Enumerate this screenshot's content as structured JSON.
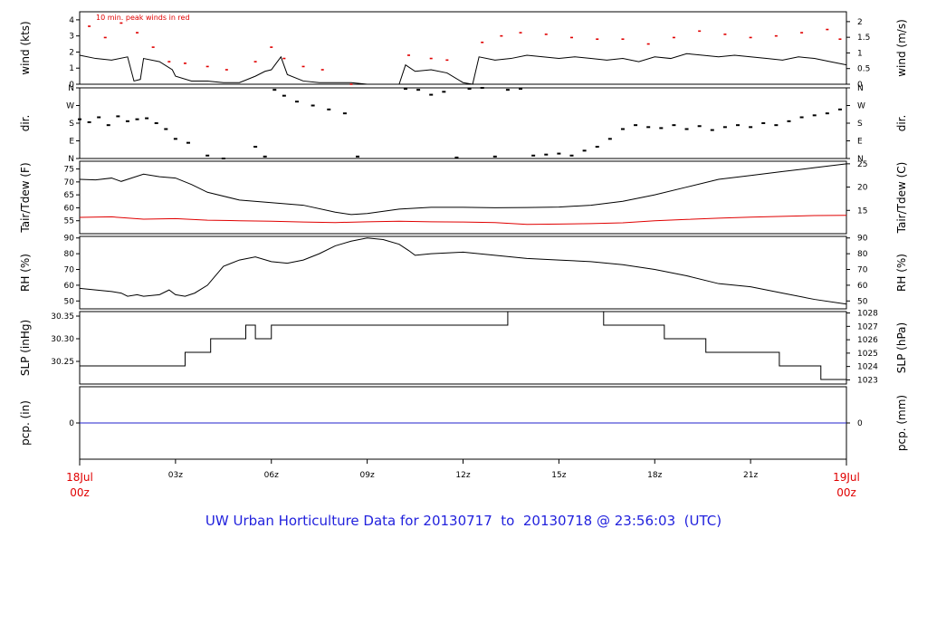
{
  "title": "UW Urban Horticulture Data for 20130717  to  20130718 @ 23:56:03  (UTC)",
  "colors": {
    "text": "#000000",
    "highlight": "#e00000",
    "title": "#2222dd",
    "precip_line": "#2222cc"
  },
  "x_axis": {
    "range_hours": [
      0,
      24
    ],
    "major_ticks": [
      {
        "hour": 0,
        "line1": "18Jul",
        "line2": "00z",
        "color": "#e00000"
      },
      {
        "hour": 24,
        "line1": "19Jul",
        "line2": "00z",
        "color": "#e00000"
      }
    ],
    "minor_ticks": [
      {
        "hour": 3,
        "label": "03z"
      },
      {
        "hour": 6,
        "label": "06z"
      },
      {
        "hour": 9,
        "label": "09z"
      },
      {
        "hour": 12,
        "label": "12z"
      },
      {
        "hour": 15,
        "label": "15z"
      },
      {
        "hour": 18,
        "label": "18z"
      },
      {
        "hour": 21,
        "label": "21z"
      }
    ]
  },
  "chart_data": [
    {
      "type": "line",
      "id": "wind",
      "ylabel_left": "wind (kts)",
      "ylabel_right": "wind (m/s)",
      "ylim": [
        0,
        4.5
      ],
      "yticks_left": [
        "0",
        "1",
        "2",
        "3",
        "4"
      ],
      "yticks_right": [
        {
          "v": 0,
          "label": "0"
        },
        {
          "v": 0.5,
          "label": "0.5"
        },
        {
          "v": 1,
          "label": "1"
        },
        {
          "v": 1.5,
          "label": "1.5"
        },
        {
          "v": 2,
          "label": "2"
        }
      ],
      "annotation": "10 min. peak winds in red",
      "series": [
        {
          "color": "#000000",
          "x": [
            0,
            0.5,
            1,
            1.5,
            1.7,
            1.9,
            2,
            2.5,
            2.9,
            3,
            3.5,
            4,
            4.5,
            5,
            5.5,
            5.8,
            6,
            6.3,
            6.5,
            7,
            7.5,
            8,
            8.5,
            9,
            9.5,
            10,
            10.2,
            10.5,
            11,
            11.5,
            12,
            12.3,
            12.5,
            13,
            13.5,
            14,
            14.5,
            15,
            15.5,
            16,
            16.5,
            17,
            17.5,
            18,
            18.5,
            19,
            19.5,
            20,
            20.5,
            21,
            21.5,
            22,
            22.5,
            23,
            23.5,
            24
          ],
          "y": [
            1.8,
            1.6,
            1.5,
            1.7,
            0.2,
            0.3,
            1.6,
            1.4,
            0.9,
            0.5,
            0.2,
            0.2,
            0.1,
            0.1,
            0.5,
            0.8,
            0.9,
            1.7,
            0.6,
            0.2,
            0.1,
            0.1,
            0.1,
            0,
            0,
            0,
            1.2,
            0.8,
            0.9,
            0.7,
            0.1,
            0,
            1.7,
            1.5,
            1.6,
            1.8,
            1.7,
            1.6,
            1.7,
            1.6,
            1.5,
            1.6,
            1.4,
            1.7,
            1.6,
            1.9,
            1.8,
            1.7,
            1.8,
            1.7,
            1.6,
            1.5,
            1.7,
            1.6,
            1.4,
            1.2
          ]
        },
        {
          "name": "10 min. peak winds",
          "color": "#e00000",
          "x": [
            0.3,
            0.8,
            1.3,
            1.8,
            2.3,
            2.8,
            3.3,
            4,
            4.6,
            5.5,
            6,
            6.4,
            7,
            7.6,
            8.5,
            10.3,
            11,
            11.5,
            12.6,
            13.2,
            13.8,
            14.6,
            15.4,
            16.2,
            17,
            17.8,
            18.6,
            19.4,
            20.2,
            21,
            21.8,
            22.6,
            23.4,
            23.8
          ],
          "y": [
            3.6,
            2.9,
            3.8,
            3.2,
            2.3,
            1.4,
            1.3,
            1.1,
            0.9,
            1.4,
            2.3,
            1.6,
            1.1,
            0.9,
            0,
            1.8,
            1.6,
            1.5,
            2.6,
            3.0,
            3.2,
            3.1,
            2.9,
            2.8,
            2.8,
            2.5,
            2.9,
            3.3,
            3.1,
            2.9,
            3.0,
            3.2,
            3.4,
            2.8
          ]
        }
      ]
    },
    {
      "type": "scatter",
      "id": "dir",
      "ylabel_left": "dir.",
      "ylabel_right": "dir.",
      "ylim": [
        0,
        360
      ],
      "yticks": [
        {
          "v": 360,
          "label": "N"
        },
        {
          "v": 270,
          "label": "W"
        },
        {
          "v": 180,
          "label": "S"
        },
        {
          "v": 90,
          "label": "E"
        },
        {
          "v": 0,
          "label": "N"
        }
      ],
      "series": [
        {
          "color": "#000000",
          "x": [
            0,
            0.3,
            0.6,
            0.9,
            1.2,
            1.5,
            1.8,
            2.1,
            2.4,
            2.7,
            3,
            3.4,
            4,
            4.5,
            5.5,
            5.8,
            6.1,
            6.4,
            6.8,
            7.3,
            7.8,
            8.3,
            8.7,
            10.2,
            10.6,
            11,
            11.4,
            11.8,
            12.2,
            12.6,
            13,
            13.4,
            13.8,
            14.2,
            14.6,
            15,
            15.4,
            15.8,
            16.2,
            16.6,
            17,
            17.4,
            17.8,
            18.2,
            18.6,
            19,
            19.4,
            19.8,
            20.2,
            20.6,
            21,
            21.4,
            21.8,
            22.2,
            22.6,
            23,
            23.4,
            23.8
          ],
          "y": [
            200,
            185,
            210,
            170,
            215,
            190,
            200,
            205,
            180,
            150,
            100,
            80,
            15,
            0,
            60,
            10,
            350,
            320,
            290,
            270,
            250,
            230,
            10,
            355,
            350,
            325,
            340,
            5,
            355,
            360,
            10,
            350,
            355,
            15,
            20,
            25,
            15,
            40,
            60,
            100,
            150,
            170,
            160,
            155,
            170,
            150,
            165,
            145,
            160,
            170,
            160,
            180,
            170,
            190,
            210,
            220,
            230,
            250
          ]
        }
      ]
    },
    {
      "type": "line",
      "id": "temp",
      "ylabel_left": "Tair/Tdew (F)",
      "ylabel_right": "Tair/Tdew (C)",
      "ylim": [
        50,
        78
      ],
      "yticks_left": [
        "55",
        "60",
        "65",
        "70",
        "75"
      ],
      "yticks_right": [
        {
          "v": 15,
          "label": "15"
        },
        {
          "v": 20,
          "label": "20"
        },
        {
          "v": 25,
          "label": "25"
        }
      ],
      "series": [
        {
          "name": "Tair",
          "color": "#000000",
          "x": [
            0,
            0.5,
            1,
            1.3,
            1.5,
            2,
            2.5,
            3,
            3.5,
            4,
            5,
            6,
            7,
            8,
            8.5,
            9,
            10,
            11,
            12,
            13,
            14,
            15,
            16,
            17,
            18,
            19,
            20,
            21,
            22,
            23,
            24
          ],
          "y": [
            71,
            70.8,
            71.5,
            70.2,
            71,
            73,
            72,
            71.5,
            69,
            66,
            63,
            62,
            61,
            58.3,
            57.4,
            57.8,
            59.5,
            60.2,
            60.2,
            60,
            60.1,
            60.3,
            61,
            62.5,
            65,
            68,
            71,
            72.5,
            74,
            75.5,
            77
          ]
        },
        {
          "name": "Tdew",
          "color": "#e00000",
          "x": [
            0,
            1,
            2,
            3,
            4,
            5,
            6,
            7,
            8,
            9,
            10,
            11,
            12,
            13,
            14,
            15,
            16,
            17,
            18,
            19,
            20,
            21,
            22,
            23,
            24
          ],
          "y": [
            56.3,
            56.5,
            55.6,
            55.8,
            55.2,
            55,
            54.8,
            54.5,
            54.3,
            54.6,
            54.8,
            54.6,
            54.5,
            54.3,
            53.6,
            53.7,
            53.9,
            54.2,
            55,
            55.5,
            56,
            56.4,
            56.7,
            57,
            57.1
          ]
        }
      ]
    },
    {
      "type": "line",
      "id": "rh",
      "ylabel_left": "RH (%)",
      "ylabel_right": "RH (%)",
      "ylim": [
        45,
        91
      ],
      "yticks_left": [
        "50",
        "60",
        "70",
        "80",
        "90"
      ],
      "yticks_right": [
        {
          "v": 50,
          "label": "50"
        },
        {
          "v": 60,
          "label": "60"
        },
        {
          "v": 70,
          "label": "70"
        },
        {
          "v": 80,
          "label": "80"
        },
        {
          "v": 90,
          "label": "90"
        }
      ],
      "series": [
        {
          "color": "#000000",
          "x": [
            0,
            0.5,
            1,
            1.3,
            1.5,
            1.8,
            2,
            2.5,
            2.8,
            3,
            3.3,
            3.6,
            4,
            4.5,
            5,
            5.5,
            6,
            6.5,
            7,
            7.5,
            8,
            8.5,
            9,
            9.5,
            10,
            10.3,
            10.5,
            11,
            12,
            13,
            14,
            15,
            16,
            17,
            18,
            19,
            20,
            21,
            22,
            23,
            24
          ],
          "y": [
            58,
            57,
            56,
            55,
            53,
            54,
            53,
            54,
            57,
            54,
            53,
            55,
            60,
            72,
            76,
            78,
            75,
            74,
            76,
            80,
            85,
            88,
            90,
            89,
            86,
            82,
            79,
            80,
            81,
            79,
            77,
            76,
            75,
            73,
            70,
            66,
            61,
            59,
            55,
            51,
            48
          ]
        }
      ]
    },
    {
      "type": "line",
      "id": "slp",
      "ylabel_left": "SLP (inHg)",
      "ylabel_right": "SLP (hPa)",
      "ylim": [
        30.2,
        30.36
      ],
      "yticks_left": [
        "30.25",
        "30.30",
        "30.35"
      ],
      "yticks_right": [
        {
          "v": 1023,
          "label": "1023"
        },
        {
          "v": 1024,
          "label": "1024"
        },
        {
          "v": 1025,
          "label": "1025"
        },
        {
          "v": 1026,
          "label": "1026"
        },
        {
          "v": 1027,
          "label": "1027"
        },
        {
          "v": 1028,
          "label": "1028"
        }
      ],
      "series": [
        {
          "step": true,
          "color": "#000000",
          "x": [
            0,
            3.3,
            4.1,
            5.2,
            5.5,
            6.0,
            13.4,
            16.4,
            18.3,
            19.6,
            21.9,
            23.2,
            24
          ],
          "y": [
            30.24,
            30.27,
            30.3,
            30.33,
            30.3,
            30.33,
            30.36,
            30.33,
            30.3,
            30.27,
            30.24,
            30.21,
            30.21
          ]
        }
      ]
    },
    {
      "type": "line",
      "id": "pcp",
      "ylabel_left": "pcp. (in)",
      "ylabel_right": "pcp. (mm)",
      "ylim": [
        -1,
        1
      ],
      "yticks_left": [
        "0"
      ],
      "yticks_right": [
        {
          "v": 0,
          "label": "0"
        }
      ],
      "series": [
        {
          "color": "#2222cc",
          "x": [
            0,
            24
          ],
          "y": [
            0,
            0
          ]
        }
      ]
    }
  ]
}
